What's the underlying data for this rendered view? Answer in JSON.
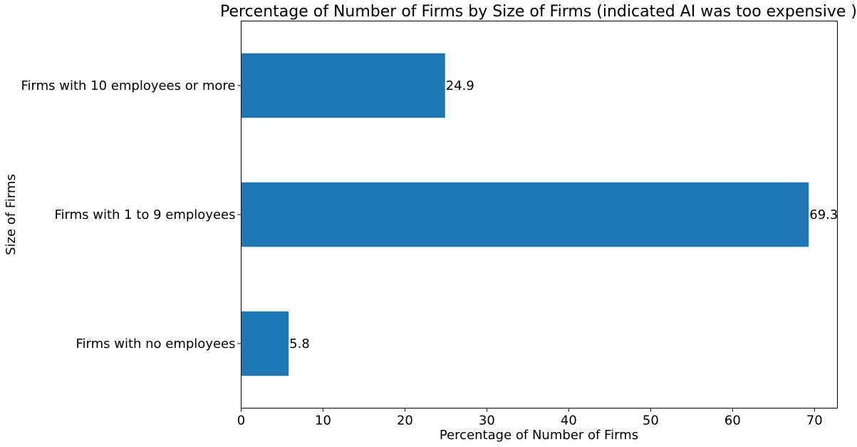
{
  "chart_data": {
    "type": "bar",
    "orientation": "horizontal",
    "title": "Percentage of Number of Firms by Size of Firms (indicated AI was too expensive )",
    "xlabel": "Percentage of Number of Firms",
    "ylabel": "Size of Firms",
    "categories": [
      "Firms with 10 employees or more",
      "Firms with 1 to 9 employees",
      "Firms with no employees"
    ],
    "values": [
      24.9,
      69.3,
      5.8
    ],
    "value_labels": [
      "24.9",
      "69.3",
      "5.8"
    ],
    "xlim": [
      0,
      72.8
    ],
    "x_ticks": [
      0,
      10,
      20,
      30,
      40,
      50,
      60,
      70
    ],
    "x_tick_labels": [
      "0",
      "10",
      "20",
      "30",
      "40",
      "50",
      "60",
      "70"
    ],
    "grid": false,
    "legend": "none",
    "bar_color": "#1f77b4"
  }
}
